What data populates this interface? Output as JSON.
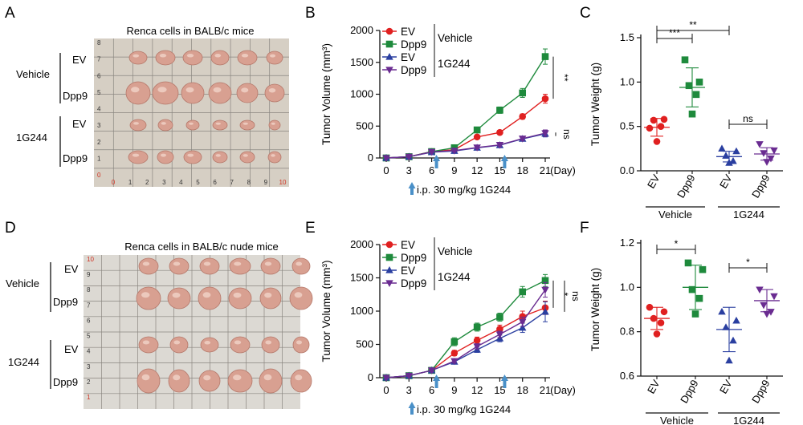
{
  "figure": {
    "panel_labels": [
      "A",
      "B",
      "C",
      "D",
      "E",
      "F"
    ],
    "photo_A": {
      "title": "Renca cells in BALB/c mice",
      "group_labels": [
        "Vehicle",
        "1G244"
      ],
      "row_labels": [
        "EV",
        "Dpp9",
        "EV",
        "Dpp9"
      ],
      "ruler_bottom": [
        "0",
        "1",
        "2",
        "3",
        "4",
        "5",
        "6",
        "7",
        "8",
        "9",
        "10"
      ],
      "ruler_left": [
        "0",
        "1",
        "2",
        "3",
        "4",
        "5",
        "6",
        "7",
        "8"
      ]
    },
    "photo_D": {
      "title": "Renca cells in BALB/c nude mice",
      "group_labels": [
        "Vehicle",
        "1G244"
      ],
      "row_labels": [
        "EV",
        "Dpp9",
        "EV",
        "Dpp9"
      ],
      "ruler_left": [
        "1",
        "2",
        "3",
        "4",
        "5",
        "6",
        "7",
        "8",
        "9",
        "10"
      ]
    },
    "colors": {
      "EV": "#e02020",
      "Dpp9_vehicle": "#1e8a3c",
      "EV_1G244": "#2a3fa0",
      "Dpp9_1G244": "#6a2c91",
      "arrow": "#4a90c8",
      "photo_bg": "#d6cfc4",
      "tumor": "#d8a091"
    }
  },
  "chart_data": [
    {
      "panel": "B",
      "type": "line",
      "ylabel": "Tumor Volume (mm³)",
      "x_unit": "(Day)",
      "x": [
        0,
        3,
        6,
        9,
        12,
        15,
        18,
        21
      ],
      "xticks": [
        "0",
        "3",
        "6",
        "9",
        "12",
        "15",
        "18",
        "21"
      ],
      "yticks": [
        "0",
        "500",
        "1000",
        "1500",
        "2000"
      ],
      "ylim": [
        0,
        2000
      ],
      "series": [
        {
          "name": "EV",
          "group": "Vehicle",
          "marker": "circle",
          "color": "#e02020",
          "values": [
            0,
            20,
            100,
            130,
            330,
            400,
            650,
            930
          ],
          "err": [
            0,
            10,
            15,
            20,
            25,
            30,
            40,
            70
          ]
        },
        {
          "name": "Dpp9",
          "group": "Vehicle",
          "marker": "square",
          "color": "#1e8a3c",
          "values": [
            0,
            20,
            100,
            160,
            440,
            750,
            1020,
            1590
          ],
          "err": [
            0,
            10,
            15,
            20,
            30,
            50,
            70,
            120
          ]
        },
        {
          "name": "EV",
          "group": "1G244",
          "marker": "triangle",
          "color": "#2a3fa0",
          "values": [
            0,
            20,
            90,
            110,
            160,
            200,
            300,
            380
          ],
          "err": [
            0,
            10,
            10,
            15,
            20,
            25,
            30,
            50
          ]
        },
        {
          "name": "Dpp9",
          "group": "1G244",
          "marker": "triangle-down",
          "color": "#6a2c91",
          "values": [
            0,
            20,
            95,
            115,
            165,
            205,
            305,
            390
          ],
          "err": [
            0,
            10,
            10,
            15,
            20,
            25,
            30,
            50
          ]
        }
      ],
      "legend_groups": [
        "Vehicle",
        "1G244"
      ],
      "significance": [
        "**",
        "ns"
      ],
      "treatment_arrows_at": [
        6,
        15
      ],
      "treatment_note": "i.p. 30 mg/kg 1G244"
    },
    {
      "panel": "C",
      "type": "scatter",
      "ylabel": "Tumor Weight (g)",
      "categories": [
        "EV",
        "Dpp9",
        "EV",
        "Dpp9"
      ],
      "category_groups": [
        "Vehicle",
        "1G244"
      ],
      "yticks": [
        "0.0",
        "0.5",
        "1.0",
        "1.5"
      ],
      "ylim": [
        0,
        1.5
      ],
      "series": [
        {
          "name": "EV",
          "group": "Vehicle",
          "marker": "circle",
          "color": "#e02020",
          "points": [
            0.48,
            0.58,
            0.57,
            0.5,
            0.33
          ],
          "mean": 0.49,
          "sd": 0.1
        },
        {
          "name": "Dpp9",
          "group": "Vehicle",
          "marker": "square",
          "color": "#1e8a3c",
          "points": [
            1.25,
            1.0,
            0.96,
            0.86,
            0.64
          ],
          "mean": 0.94,
          "sd": 0.22
        },
        {
          "name": "EV",
          "group": "1G244",
          "marker": "triangle",
          "color": "#2a3fa0",
          "points": [
            0.25,
            0.22,
            0.17,
            0.11,
            0.09
          ],
          "mean": 0.16,
          "sd": 0.06
        },
        {
          "name": "Dpp9",
          "group": "1G244",
          "marker": "triangle-down",
          "color": "#6a2c91",
          "points": [
            0.3,
            0.23,
            0.2,
            0.14,
            0.1
          ],
          "mean": 0.19,
          "sd": 0.07
        }
      ],
      "significance": [
        "***",
        "**",
        "ns"
      ]
    },
    {
      "panel": "E",
      "type": "line",
      "ylabel": "Tumor Volume (mm³)",
      "x_unit": "(Day)",
      "x": [
        0,
        3,
        6,
        9,
        12,
        15,
        18,
        21
      ],
      "xticks": [
        "0",
        "3",
        "6",
        "9",
        "12",
        "15",
        "18",
        "21"
      ],
      "yticks": [
        "0",
        "500",
        "1000",
        "1500",
        "2000"
      ],
      "ylim": [
        0,
        2000
      ],
      "series": [
        {
          "name": "EV",
          "group": "Vehicle",
          "marker": "circle",
          "color": "#e02020",
          "values": [
            0,
            30,
            110,
            370,
            560,
            730,
            920,
            1050
          ],
          "err": [
            0,
            10,
            20,
            40,
            50,
            60,
            80,
            100
          ]
        },
        {
          "name": "Dpp9",
          "group": "Vehicle",
          "marker": "square",
          "color": "#1e8a3c",
          "values": [
            0,
            30,
            110,
            540,
            760,
            910,
            1290,
            1460
          ],
          "err": [
            0,
            10,
            20,
            60,
            60,
            60,
            80,
            90
          ]
        },
        {
          "name": "EV",
          "group": "1G244",
          "marker": "triangle",
          "color": "#2a3fa0",
          "values": [
            0,
            30,
            110,
            240,
            420,
            590,
            750,
            990
          ],
          "err": [
            0,
            10,
            20,
            30,
            40,
            50,
            70,
            150
          ]
        },
        {
          "name": "Dpp9",
          "group": "1G244",
          "marker": "triangle-down",
          "color": "#6a2c91",
          "values": [
            0,
            30,
            110,
            250,
            470,
            650,
            840,
            1320
          ],
          "err": [
            0,
            10,
            20,
            30,
            40,
            50,
            70,
            110
          ]
        }
      ],
      "legend_groups": [
        "Vehicle",
        "1G244"
      ],
      "significance": [
        "*",
        "ns"
      ],
      "treatment_arrows_at": [
        6,
        15
      ],
      "treatment_note": "i.p. 30 mg/kg 1G244"
    },
    {
      "panel": "F",
      "type": "scatter",
      "ylabel": "Tumor Weight (g)",
      "categories": [
        "EV",
        "Dpp9",
        "EV",
        "Dpp9"
      ],
      "category_groups": [
        "Vehicle",
        "1G244"
      ],
      "yticks": [
        "0.6",
        "0.8",
        "1.0",
        "1.2"
      ],
      "ylim": [
        0.6,
        1.2
      ],
      "series": [
        {
          "name": "EV",
          "group": "Vehicle",
          "marker": "circle",
          "color": "#e02020",
          "points": [
            0.91,
            0.89,
            0.86,
            0.84,
            0.79
          ],
          "mean": 0.86,
          "sd": 0.05
        },
        {
          "name": "Dpp9",
          "group": "Vehicle",
          "marker": "square",
          "color": "#1e8a3c",
          "points": [
            1.11,
            1.08,
            0.99,
            0.95,
            0.88
          ],
          "mean": 1.0,
          "sd": 0.1
        },
        {
          "name": "EV",
          "group": "1G244",
          "marker": "triangle",
          "color": "#2a3fa0",
          "points": [
            0.89,
            0.85,
            0.82,
            0.76,
            0.67
          ],
          "mean": 0.81,
          "sd": 0.1
        },
        {
          "name": "Dpp9",
          "group": "1G244",
          "marker": "triangle-down",
          "color": "#6a2c91",
          "points": [
            0.99,
            0.96,
            0.92,
            0.89,
            0.88
          ],
          "mean": 0.94,
          "sd": 0.05
        }
      ],
      "significance": [
        "*",
        "*"
      ]
    }
  ]
}
